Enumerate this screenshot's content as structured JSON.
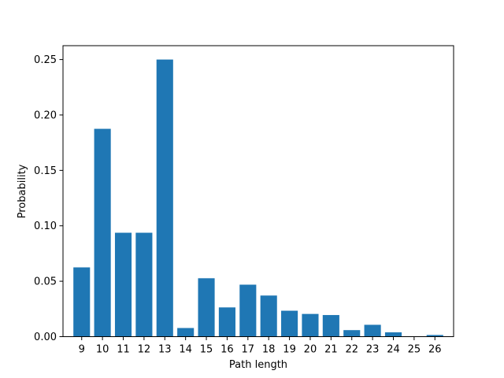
{
  "chart_data": {
    "type": "bar",
    "title": "",
    "xlabel": "Path length",
    "ylabel": "Probability",
    "categories": [
      "9",
      "10",
      "11",
      "12",
      "13",
      "14",
      "15",
      "16",
      "17",
      "18",
      "19",
      "20",
      "21",
      "22",
      "23",
      "24",
      "25",
      "26"
    ],
    "values": [
      0.0625,
      0.1875,
      0.09375,
      0.09375,
      0.25,
      0.0078,
      0.0527,
      0.0264,
      0.0469,
      0.0371,
      0.0234,
      0.0205,
      0.0195,
      0.0059,
      0.0107,
      0.0039,
      0.0,
      0.0015
    ],
    "ylim": [
      0,
      0.2625
    ],
    "yticks": [
      0.0,
      0.05,
      0.1,
      0.15,
      0.2,
      0.25
    ],
    "ytick_labels": [
      "0.00",
      "0.05",
      "0.10",
      "0.15",
      "0.20",
      "0.25"
    ],
    "bar_color": "#1f77b4",
    "grid": false,
    "legend": null
  }
}
